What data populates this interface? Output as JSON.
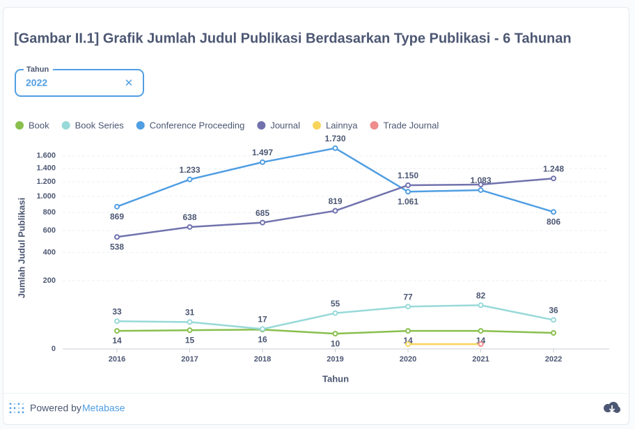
{
  "title": "[Gambar II.1] Grafik Jumlah Judul Publikasi Berdasarkan Type Publikasi - 6 Tahunan",
  "filter": {
    "label": "Tahun",
    "value": "2022"
  },
  "footer": {
    "prefix": "Powered by",
    "brand": "Metabase"
  },
  "chart_data": {
    "type": "line",
    "categories": [
      "2016",
      "2017",
      "2018",
      "2019",
      "2020",
      "2021",
      "2022"
    ],
    "series": [
      {
        "name": "Book",
        "color": "#88bf4d",
        "values": [
          14,
          15,
          16,
          10,
          14,
          14,
          11
        ],
        "value_labels": [
          "14",
          "15",
          "16",
          "10",
          "14",
          "14",
          null
        ]
      },
      {
        "name": "Book Series",
        "color": "#98d9d9",
        "values": [
          33,
          31,
          17,
          55,
          77,
          82,
          36
        ],
        "value_labels": [
          "33",
          "31",
          "17",
          "55",
          "77",
          "82",
          "36"
        ]
      },
      {
        "name": "Conference Proceeding",
        "color": "#509ee3",
        "values": [
          869,
          1233,
          1497,
          1730,
          1061,
          1083,
          806
        ],
        "value_labels": [
          "869",
          "1.233",
          "1.497",
          "1.730",
          "1.061",
          "1.083",
          "806"
        ]
      },
      {
        "name": "Journal",
        "color": "#7172ad",
        "values": [
          538,
          638,
          685,
          819,
          1150,
          1160,
          1248
        ],
        "value_labels": [
          "538",
          "638",
          "685",
          "819",
          "1.150",
          null,
          "1.248"
        ]
      },
      {
        "name": "Lainnya",
        "color": "#f9d45c",
        "values": [
          null,
          null,
          null,
          null,
          1,
          1,
          null
        ],
        "value_labels": [
          null,
          null,
          null,
          null,
          null,
          null,
          null
        ]
      },
      {
        "name": "Trade Journal",
        "color": "#ef8c8c",
        "values": [
          null,
          null,
          null,
          null,
          null,
          1,
          null
        ],
        "value_labels": [
          null,
          null,
          null,
          null,
          null,
          null,
          null
        ]
      }
    ],
    "ylim": [
      0,
      1800
    ],
    "yscale": "sqrt",
    "yticks": [
      0,
      200,
      400,
      600,
      800,
      {
        "value": 1000,
        "label": "1.000"
      },
      {
        "value": 1200,
        "label": "1.200"
      },
      {
        "value": 1400,
        "label": "1.400"
      },
      {
        "value": 1600,
        "label": "1.600"
      }
    ],
    "grid": true,
    "xlabel": "Tahun",
    "ylabel": "Jumlah Judul Publikasi",
    "legend": "top"
  }
}
